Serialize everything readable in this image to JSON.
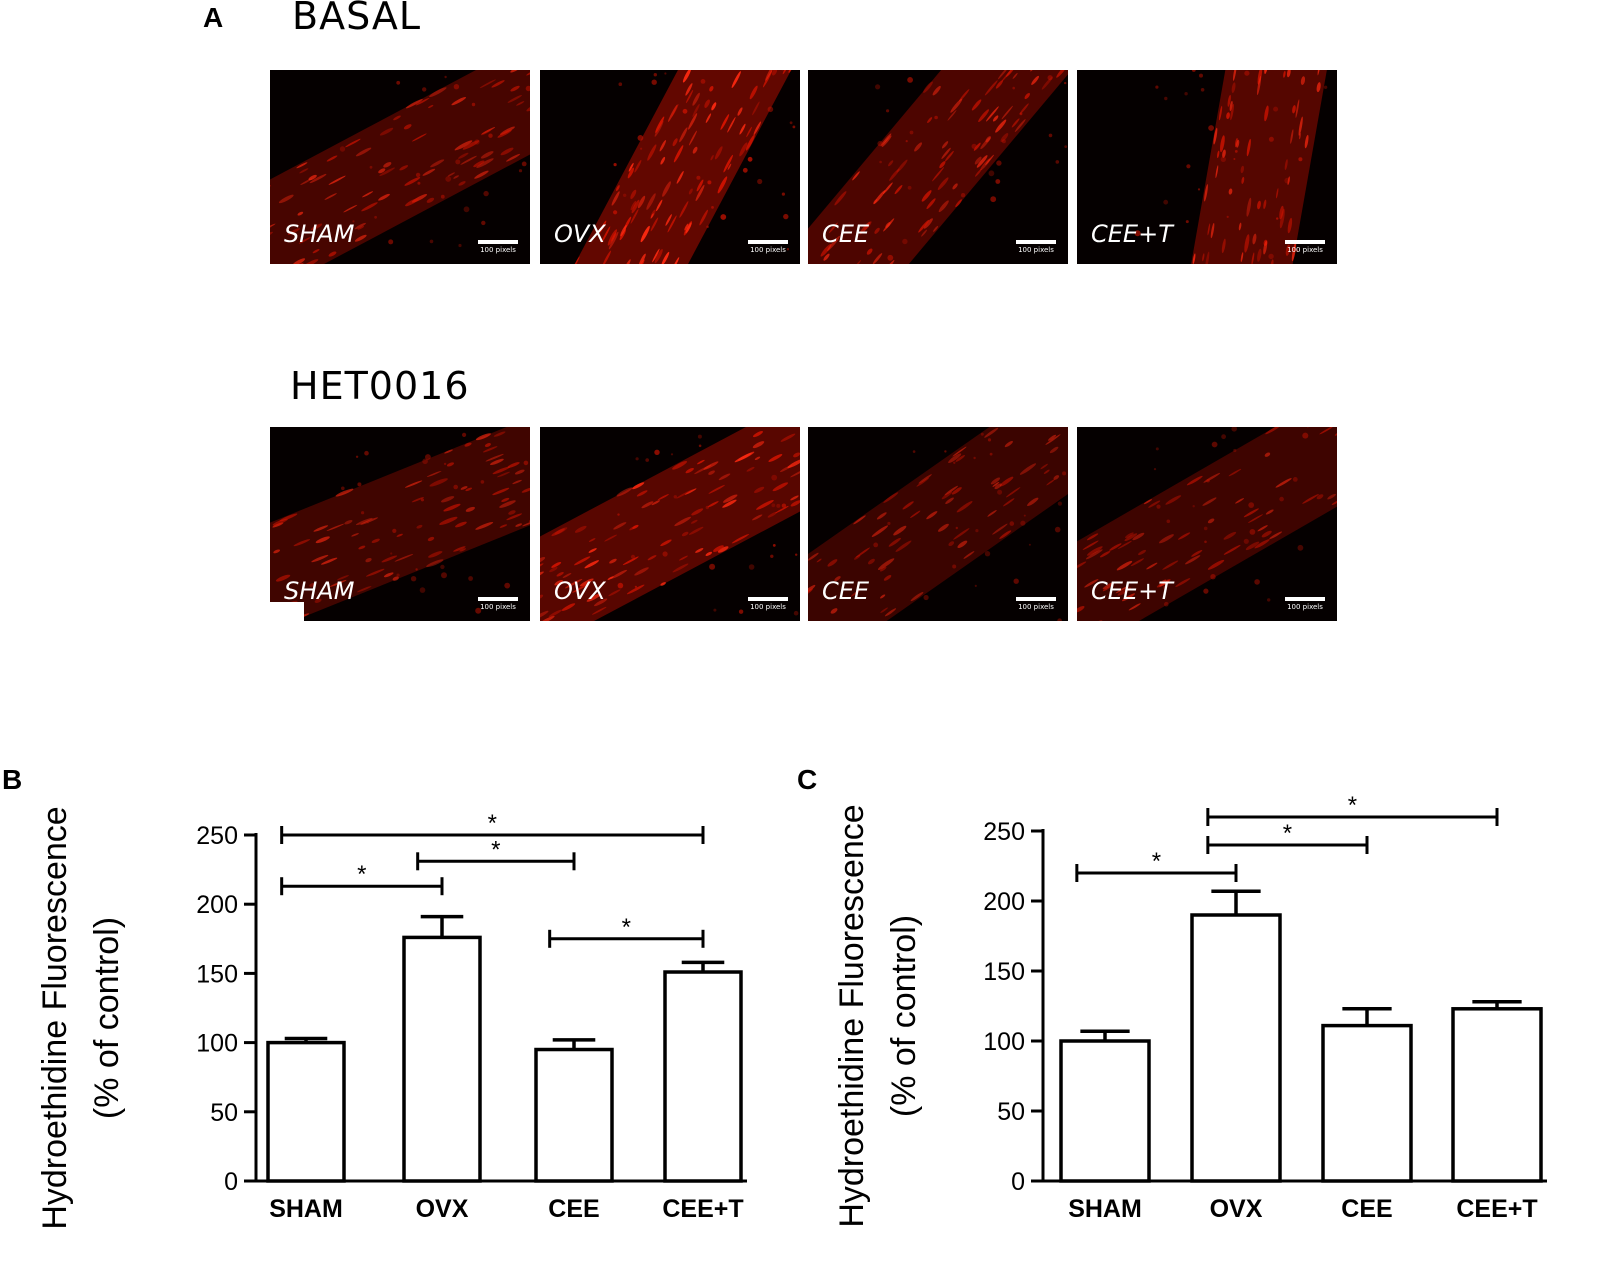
{
  "panel_a": {
    "letter": "A",
    "scale_text": "100 pixels",
    "rows": [
      {
        "title": "BASAL",
        "images": [
          {
            "label": "SHAM",
            "density": 0.55,
            "angle": -28,
            "offset": 0.0
          },
          {
            "label": "OVX",
            "density": 1.0,
            "angle": -62,
            "offset": 0.05
          },
          {
            "label": "CEE",
            "density": 0.65,
            "angle": -50,
            "offset": -0.05
          },
          {
            "label": "CEE+T",
            "density": 0.8,
            "angle": -80,
            "offset": 0.2
          }
        ]
      },
      {
        "title": "HET0016",
        "images": [
          {
            "label": "SHAM",
            "density": 0.45,
            "angle": -22,
            "offset": 0.0
          },
          {
            "label": "OVX",
            "density": 0.85,
            "angle": -28,
            "offset": 0.0
          },
          {
            "label": "CEE",
            "density": 0.35,
            "angle": -35,
            "offset": 0.0
          },
          {
            "label": "CEE+T",
            "density": 0.4,
            "angle": -30,
            "offset": 0.0
          }
        ]
      }
    ]
  },
  "chart_data": [
    {
      "type": "bar",
      "panel": "B",
      "categories": [
        "SHAM",
        "OVX",
        "CEE",
        "CEE+T"
      ],
      "values": [
        100,
        176,
        95,
        151
      ],
      "errors": [
        3,
        15,
        7,
        7
      ],
      "ylabel": "Hydroethidine Fluorescence",
      "ylabel2": "(% of control)",
      "ylim": [
        0,
        250
      ],
      "yticks": [
        0,
        50,
        100,
        150,
        200,
        250
      ],
      "significance": [
        {
          "from": 0,
          "to": 3,
          "y": 250,
          "label": "*"
        },
        {
          "from": 1,
          "to": 2,
          "y": 231,
          "label": "*"
        },
        {
          "from": 0,
          "to": 1,
          "y": 213,
          "label": "*"
        },
        {
          "from": 2,
          "to": 3,
          "y": 175,
          "label": "*"
        }
      ]
    },
    {
      "type": "bar",
      "panel": "C",
      "categories": [
        "SHAM",
        "OVX",
        "CEE",
        "CEE+T"
      ],
      "values": [
        100,
        190,
        111,
        123
      ],
      "errors": [
        7,
        17,
        12,
        5
      ],
      "ylabel": "Hydroethidine Fluorescence",
      "ylabel2": "(% of control)",
      "ylim": [
        0,
        250
      ],
      "yticks": [
        0,
        50,
        100,
        150,
        200,
        250
      ],
      "significance": [
        {
          "from": 1,
          "to": 3,
          "y": 260,
          "label": "*"
        },
        {
          "from": 1,
          "to": 2,
          "y": 240,
          "label": "*"
        },
        {
          "from": 0,
          "to": 1,
          "y": 220,
          "label": "*"
        }
      ]
    }
  ]
}
